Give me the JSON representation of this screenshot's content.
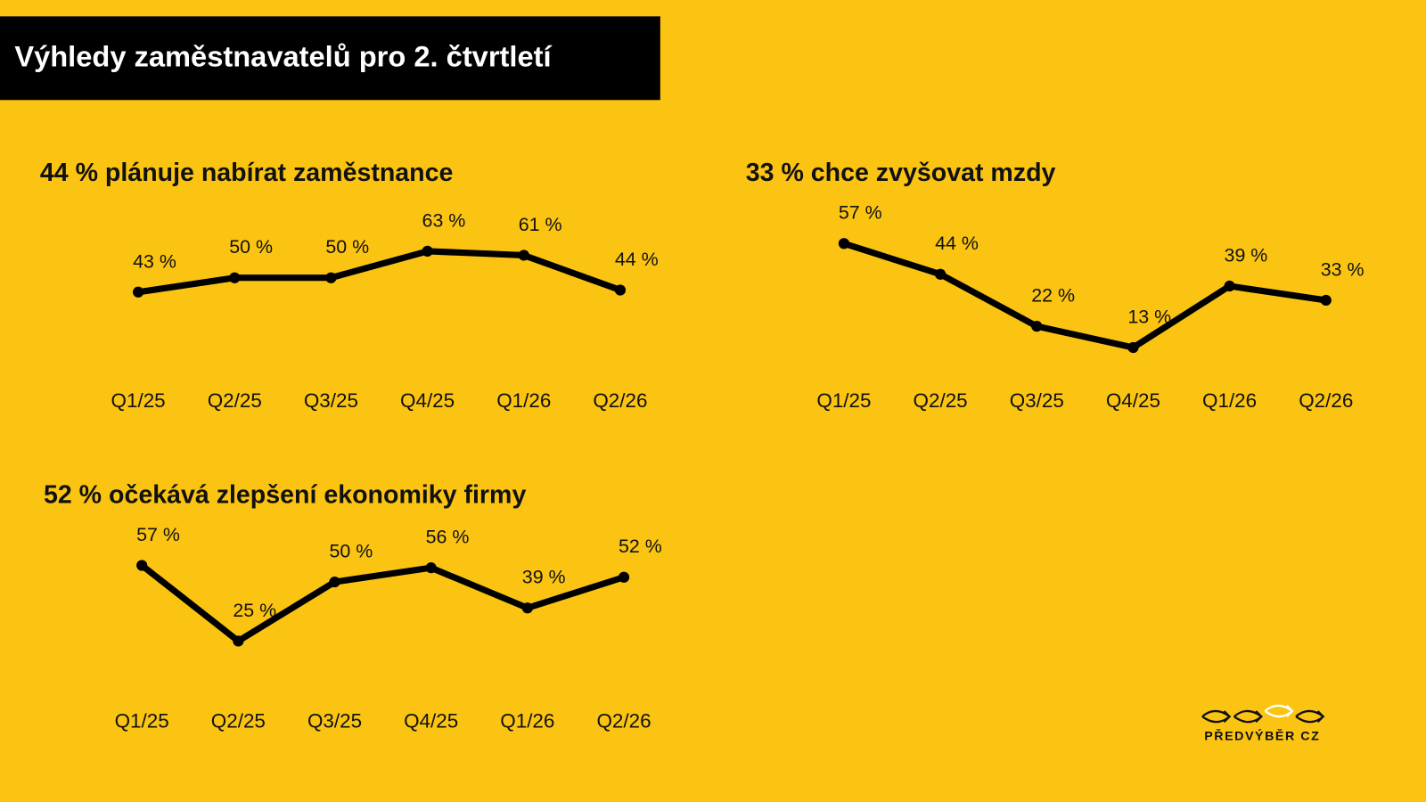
{
  "header": {
    "title": "Výhledy zaměstnavatelů pro 2. čtvrtletí"
  },
  "chart_data": [
    {
      "type": "line",
      "title": "44 % plánuje nabírat zaměstnance",
      "categories": [
        "Q1/25",
        "Q2/25",
        "Q3/25",
        "Q4/25",
        "Q1/26",
        "Q2/26"
      ],
      "series": [
        {
          "color": "#000000",
          "values": [
            43,
            50,
            50,
            63,
            61,
            44
          ],
          "value_labels": [
            "43 %",
            "50 %",
            "50 %",
            "63 %",
            "61 %",
            "44 %"
          ]
        }
      ]
    },
    {
      "type": "line",
      "title": "33 % chce zvyšovat mzdy",
      "categories": [
        "Q1/25",
        "Q2/25",
        "Q3/25",
        "Q4/25",
        "Q1/26",
        "Q2/26"
      ],
      "series": [
        {
          "color": "#000000",
          "values": [
            57,
            44,
            22,
            13,
            39,
            33
          ],
          "value_labels": [
            "57 %",
            "44 %",
            "22 %",
            "13 %",
            "39 %",
            "33 %"
          ]
        }
      ]
    },
    {
      "type": "line",
      "title": "52 % očekává zlepšení ekonomiky firmy",
      "categories": [
        "Q1/25",
        "Q2/25",
        "Q3/25",
        "Q4/25",
        "Q1/26",
        "Q2/26"
      ],
      "series": [
        {
          "color": "#000000",
          "values": [
            57,
            25,
            50,
            56,
            39,
            52
          ],
          "value_labels": [
            "57 %",
            "25 %",
            "50 %",
            "56 %",
            "39 %",
            "52 %"
          ]
        }
      ]
    }
  ],
  "logo": {
    "text": "PŘEDVÝBĚR CZ"
  }
}
